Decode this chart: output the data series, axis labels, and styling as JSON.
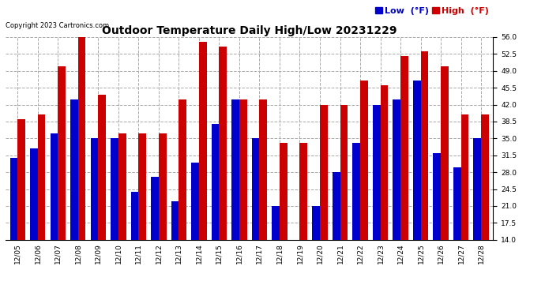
{
  "title": "Outdoor Temperature Daily High/Low 20231229",
  "copyright": "Copyright 2023 Cartronics.com",
  "dates": [
    "12/05",
    "12/06",
    "12/07",
    "12/08",
    "12/09",
    "12/10",
    "12/11",
    "12/12",
    "12/13",
    "12/14",
    "12/15",
    "12/16",
    "12/17",
    "12/18",
    "12/19",
    "12/20",
    "12/21",
    "12/22",
    "12/23",
    "12/24",
    "12/25",
    "12/26",
    "12/27",
    "12/28"
  ],
  "highs": [
    39,
    40,
    50,
    57,
    44,
    36,
    36,
    36,
    43,
    55,
    54,
    43,
    43,
    34,
    34,
    42,
    42,
    47,
    46,
    52,
    53,
    50,
    40,
    40
  ],
  "lows": [
    31,
    33,
    36,
    43,
    35,
    35,
    24,
    27,
    22,
    30,
    38,
    43,
    35,
    21,
    14,
    21,
    28,
    34,
    42,
    43,
    47,
    32,
    29,
    35
  ],
  "high_color": "#cc0000",
  "low_color": "#0000cc",
  "bg_color": "#ffffff",
  "grid_color": "#aaaaaa",
  "ymin": 14.0,
  "ymax": 56.0,
  "yticks": [
    14.0,
    17.5,
    21.0,
    24.5,
    28.0,
    31.5,
    35.0,
    38.5,
    42.0,
    45.5,
    49.0,
    52.5,
    56.0
  ],
  "bar_width": 0.38,
  "title_fontsize": 10,
  "tick_fontsize": 6.5,
  "legend_fontsize": 8,
  "copyright_fontsize": 6
}
